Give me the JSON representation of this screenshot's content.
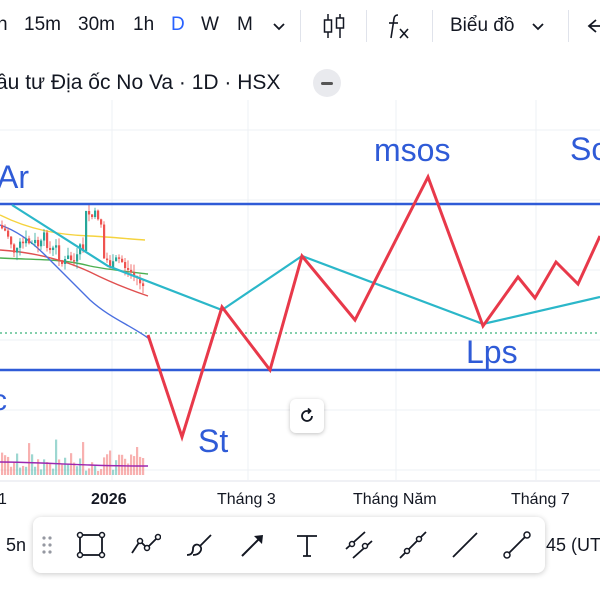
{
  "toolbar": {
    "timeframes": [
      "h",
      "15m",
      "30m",
      "1h",
      "D",
      "W",
      "M"
    ],
    "active_timeframe": "D",
    "chart_type_label": "Biểu đồ",
    "icons": [
      "chevron-down-icon",
      "candles-icon",
      "indicators-fx-icon",
      "chevron-down-icon",
      "undo-icon"
    ]
  },
  "symbol": {
    "title": "ầu tư Địa ốc No Va · 1D · HSX"
  },
  "annotations": {
    "ar": "Ar",
    "st": "St",
    "msos": "msos",
    "lps": "Lps",
    "sos": "So",
    "left_c": "c"
  },
  "time_axis": {
    "labels": [
      "1",
      "2026",
      "Tháng 3",
      "Tháng Năm",
      "Tháng 7"
    ]
  },
  "bottom": {
    "left_text": "5n",
    "right_text": "45 (UT"
  },
  "drawing_tools": [
    "drag-handle-icon",
    "rectangle-icon",
    "polyline-icon",
    "brush-icon",
    "arrow-icon",
    "text-icon",
    "parallel-channel-icon",
    "ray-icon",
    "trend-line-icon",
    "extended-line-icon"
  ],
  "colors": {
    "accent": "#2962ff",
    "wyckoff_path": "#e8394a",
    "cyan_line": "#2bb7c9",
    "range_line": "#2f5bd7",
    "label_blue": "#2f5bd7"
  }
}
